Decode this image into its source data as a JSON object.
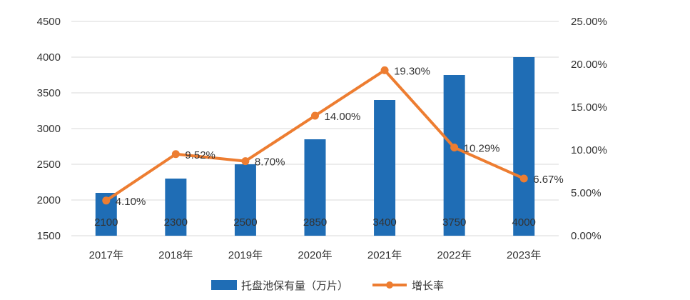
{
  "chart_data": {
    "type": "bar",
    "categories": [
      "2017年",
      "2018年",
      "2019年",
      "2020年",
      "2021年",
      "2022年",
      "2023年"
    ],
    "series": [
      {
        "name": "托盘池保有量（万片）",
        "type": "bar",
        "axis": "left",
        "color": "#1f6db5",
        "values": [
          2100,
          2300,
          2500,
          2850,
          3400,
          3750,
          4000
        ],
        "labels": [
          "2100",
          "2300",
          "2500",
          "2850",
          "3400",
          "3750",
          "4000"
        ]
      },
      {
        "name": "增长率",
        "type": "line",
        "axis": "right",
        "color": "#ed7d31",
        "values": [
          4.1,
          9.52,
          8.7,
          14.0,
          19.3,
          10.29,
          6.67
        ],
        "labels": [
          "4.10%",
          "9.52%",
          "8.70%",
          "14.00%",
          "19.30%",
          "10.29%",
          "6.67%"
        ]
      }
    ],
    "y_left": {
      "range": [
        1500,
        4500
      ],
      "ticks": [
        1500,
        2000,
        2500,
        3000,
        3500,
        4000,
        4500
      ],
      "tick_labels": [
        "1500",
        "2000",
        "2500",
        "3000",
        "3500",
        "4000",
        "4500"
      ]
    },
    "y_right": {
      "range": [
        0,
        25
      ],
      "ticks": [
        0,
        5,
        10,
        15,
        20,
        25
      ],
      "tick_labels": [
        "0.00%",
        "5.00%",
        "10.00%",
        "15.00%",
        "20.00%",
        "25.00%"
      ]
    },
    "grid": true,
    "legend_position": "bottom"
  }
}
